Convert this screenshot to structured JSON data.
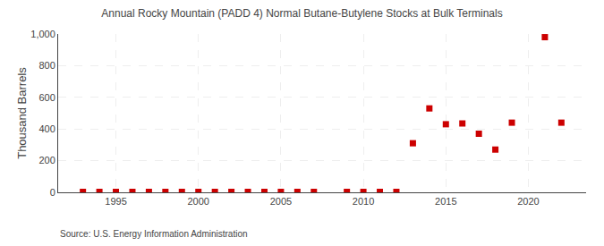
{
  "chart_data": {
    "type": "scatter",
    "title": "Annual Rocky Mountain (PADD 4) Normal Butane-Butylene Stocks at Bulk Terminals",
    "ylabel": "Thousand Barrels",
    "annotations": [
      "Source: U.S. Energy Information Administration"
    ],
    "x": [
      1993,
      1994,
      1995,
      1996,
      1997,
      1998,
      1999,
      2000,
      2001,
      2002,
      2003,
      2004,
      2005,
      2006,
      2007,
      2009,
      2010,
      2011,
      2012,
      2013,
      2014,
      2015,
      2016,
      2017,
      2018,
      2019,
      2021,
      2022
    ],
    "values": [
      3,
      3,
      3,
      3,
      3,
      3,
      3,
      3,
      3,
      3,
      3,
      3,
      3,
      3,
      3,
      3,
      3,
      3,
      3,
      310,
      530,
      430,
      435,
      370,
      270,
      440,
      980,
      440
    ],
    "color": "#cc0000",
    "marker": "square",
    "xlim": [
      1991.5,
      2023.5
    ],
    "xticks": [
      1995,
      2000,
      2005,
      2010,
      2015,
      2020
    ],
    "ylim": [
      0,
      1000
    ],
    "yticks": [
      0,
      200,
      400,
      600,
      800,
      {
        "value": 1000,
        "label": "1,000"
      }
    ],
    "grid": true
  }
}
